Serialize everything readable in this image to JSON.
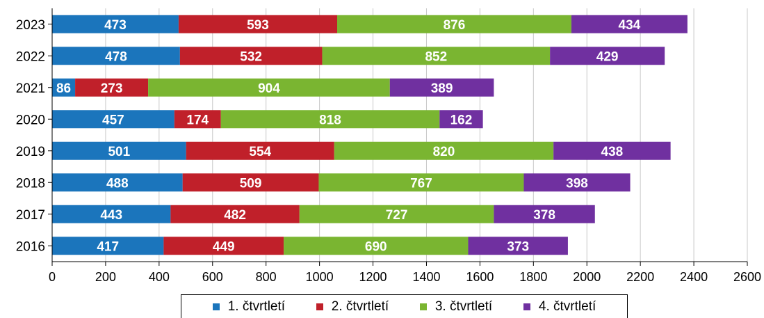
{
  "chart_data": {
    "type": "bar",
    "orientation": "horizontal",
    "stacked": true,
    "categories": [
      "2023",
      "2022",
      "2021",
      "2020",
      "2019",
      "2018",
      "2017",
      "2016"
    ],
    "series": [
      {
        "name": "1. čtvrtletí",
        "color": "#1b75bc",
        "values": [
          473,
          478,
          86,
          457,
          501,
          488,
          443,
          417
        ]
      },
      {
        "name": "2. čtvrtletí",
        "color": "#c0202a",
        "values": [
          593,
          532,
          273,
          174,
          554,
          509,
          482,
          449
        ]
      },
      {
        "name": "3. čtvrtletí",
        "color": "#7ab531",
        "values": [
          876,
          852,
          904,
          818,
          820,
          767,
          727,
          690
        ]
      },
      {
        "name": "4. čtvrtletí",
        "color": "#7030a0",
        "values": [
          434,
          429,
          389,
          162,
          438,
          398,
          378,
          373
        ]
      }
    ],
    "xlim": [
      0,
      2600
    ],
    "xticks": [
      "0",
      "200",
      "400",
      "600",
      "800",
      "1000",
      "1200",
      "1400",
      "1600",
      "1800",
      "2000",
      "2200",
      "2400",
      "2600"
    ],
    "grid": true,
    "legend_position": "bottom",
    "data_labels": true
  }
}
